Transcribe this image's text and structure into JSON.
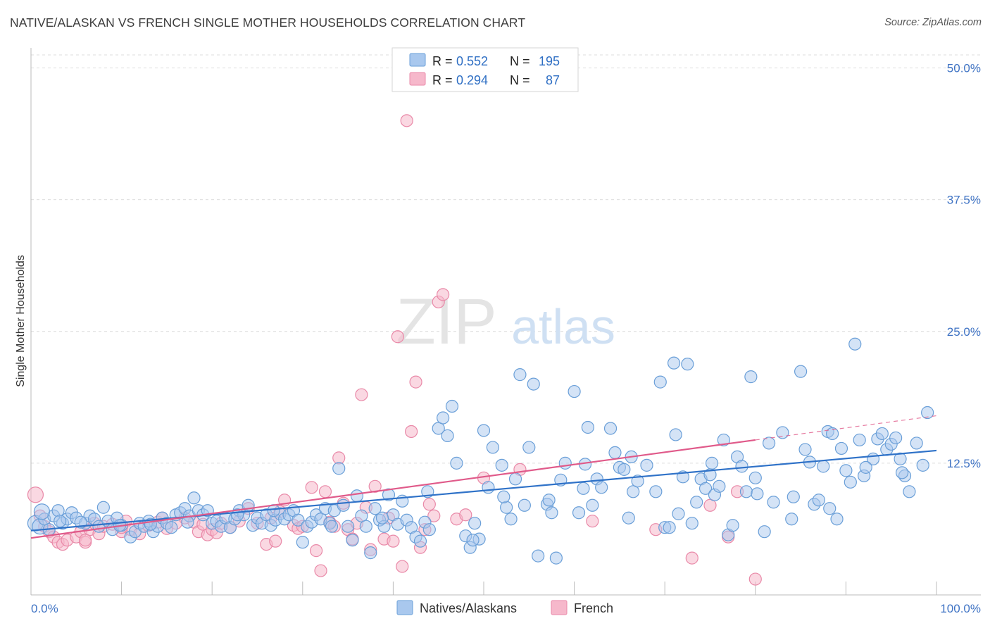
{
  "header": {
    "title": "NATIVE/ALASKAN VS FRENCH SINGLE MOTHER HOUSEHOLDS CORRELATION CHART",
    "source": "Source: ZipAtlas.com"
  },
  "watermark": {
    "zip": "ZIP",
    "atlas": "atlas"
  },
  "colors": {
    "blue_fill": "#a9c8ee",
    "blue_stroke": "#6a9fd8",
    "blue_line": "#2f72c8",
    "pink_fill": "#f6b8cb",
    "pink_stroke": "#e989a8",
    "pink_line": "#e05a8a",
    "axis_text": "#3f73c4",
    "grid": "#dcdcdc"
  },
  "legend_top": [
    {
      "swatch": "blue",
      "r_label": "R = ",
      "r_value": "0.552",
      "n_label": "N = ",
      "n_value": "195"
    },
    {
      "swatch": "pink",
      "r_label": "R = ",
      "r_value": "0.294",
      "n_label": "N = ",
      "n_value": "87"
    }
  ],
  "legend_bottom": [
    {
      "swatch": "blue",
      "label": "Natives/Alaskans"
    },
    {
      "swatch": "pink",
      "label": "French"
    }
  ],
  "chart_data": {
    "type": "scatter",
    "xlabel": "",
    "ylabel": "Single Mother Households",
    "xlim": [
      0,
      100
    ],
    "ylim": [
      0,
      50
    ],
    "x_tick_labels": {
      "min": "0.0%",
      "max": "100.0%"
    },
    "y_tick_labels": [
      "12.5%",
      "25.0%",
      "37.5%",
      "50.0%"
    ],
    "y_ticks": [
      12.5,
      25.0,
      37.5,
      50.0
    ],
    "grid": "horizontal dashed",
    "legend_position": "top-center",
    "series": [
      {
        "name": "Natives/Alaskans",
        "color": "#a9c8ee",
        "trend": {
          "x0": 0,
          "y0": 6.1,
          "x1": 100,
          "y1": 13.7
        },
        "points": [
          [
            0.5,
            6.8
          ],
          [
            1,
            6.5
          ],
          [
            1.5,
            7.2
          ],
          [
            2,
            6.2
          ],
          [
            2.5,
            7.5
          ],
          [
            3,
            8
          ],
          [
            3.5,
            6.8
          ],
          [
            4,
            7.2
          ],
          [
            4.5,
            7.8
          ],
          [
            5,
            7.3
          ],
          [
            6,
            6.8
          ],
          [
            6.5,
            7.5
          ],
          [
            7,
            7.2
          ],
          [
            7.5,
            6.5
          ],
          [
            8,
            8.3
          ],
          [
            8.5,
            7
          ],
          [
            9,
            6.2
          ],
          [
            9.5,
            7.3
          ],
          [
            10,
            6.6
          ],
          [
            11,
            5.5
          ],
          [
            11.5,
            6
          ],
          [
            12,
            6.8
          ],
          [
            12.5,
            6.5
          ],
          [
            13,
            7
          ],
          [
            13.5,
            6
          ],
          [
            14,
            6.5
          ],
          [
            14.5,
            7.3
          ],
          [
            15,
            6.8
          ],
          [
            15.5,
            6.4
          ],
          [
            16,
            7.6
          ],
          [
            16.5,
            7.8
          ],
          [
            17,
            8.2
          ],
          [
            17.5,
            7.5
          ],
          [
            18,
            9.2
          ],
          [
            18.5,
            8
          ],
          [
            19,
            7.6
          ],
          [
            19.5,
            8
          ],
          [
            20,
            6.8
          ],
          [
            20.5,
            7
          ],
          [
            21,
            6.5
          ],
          [
            21.5,
            7.3
          ],
          [
            22,
            6.4
          ],
          [
            22.5,
            7.2
          ],
          [
            23,
            8
          ],
          [
            23.5,
            7.6
          ],
          [
            24,
            8.5
          ],
          [
            24.5,
            6.6
          ],
          [
            25,
            7.3
          ],
          [
            25.5,
            6.8
          ],
          [
            26,
            7.6
          ],
          [
            26.5,
            6.6
          ],
          [
            27,
            7.1
          ],
          [
            27.5,
            7.7
          ],
          [
            28,
            7.2
          ],
          [
            28.5,
            7.6
          ],
          [
            29,
            8
          ],
          [
            29.5,
            7.1
          ],
          [
            30,
            5
          ],
          [
            30.5,
            6.5
          ],
          [
            31,
            6.9
          ],
          [
            31.5,
            7.6
          ],
          [
            32,
            7.2
          ],
          [
            32.5,
            8.2
          ],
          [
            33,
            6.8
          ],
          [
            33.5,
            8
          ],
          [
            34,
            12
          ],
          [
            34.5,
            8.5
          ],
          [
            35,
            6.5
          ],
          [
            35.5,
            5.2
          ],
          [
            36,
            9.4
          ],
          [
            36.5,
            7.5
          ],
          [
            37,
            6.5
          ],
          [
            37.5,
            4
          ],
          [
            38,
            8.2
          ],
          [
            38.5,
            7.1
          ],
          [
            39,
            6.5
          ],
          [
            39.5,
            9.5
          ],
          [
            40,
            7.6
          ],
          [
            40.5,
            6.7
          ],
          [
            41,
            8.9
          ],
          [
            41.5,
            7.1
          ],
          [
            42,
            6.4
          ],
          [
            42.5,
            5.5
          ],
          [
            43,
            5.1
          ],
          [
            43.5,
            6.9
          ],
          [
            44,
            6.2
          ],
          [
            45,
            15.8
          ],
          [
            45.5,
            16.8
          ],
          [
            46,
            15.1
          ],
          [
            46.5,
            17.9
          ],
          [
            47,
            12.5
          ],
          [
            48,
            5.6
          ],
          [
            48.5,
            4.5
          ],
          [
            49,
            6.8
          ],
          [
            49.5,
            5.3
          ],
          [
            50,
            15.6
          ],
          [
            50.5,
            10.2
          ],
          [
            51,
            14
          ],
          [
            52,
            12.3
          ],
          [
            52.5,
            8.3
          ],
          [
            53,
            7.2
          ],
          [
            53.5,
            11
          ],
          [
            54,
            20.9
          ],
          [
            54.5,
            8.5
          ],
          [
            55,
            14
          ],
          [
            55.5,
            20
          ],
          [
            56,
            3.7
          ],
          [
            57,
            8.6
          ],
          [
            57.5,
            7.8
          ],
          [
            58,
            3.5
          ],
          [
            58.5,
            10.9
          ],
          [
            59,
            12.5
          ],
          [
            60,
            19.3
          ],
          [
            60.5,
            7.8
          ],
          [
            61,
            10.1
          ],
          [
            61.5,
            15.9
          ],
          [
            62,
            8.5
          ],
          [
            62.5,
            11
          ],
          [
            63,
            10.2
          ],
          [
            64,
            15.8
          ],
          [
            64.5,
            13.5
          ],
          [
            65,
            12.1
          ],
          [
            65.5,
            11.9
          ],
          [
            66,
            7.3
          ],
          [
            66.5,
            9.8
          ],
          [
            67,
            10.8
          ],
          [
            68,
            12.3
          ],
          [
            69,
            9.8
          ],
          [
            69.5,
            20.2
          ],
          [
            70,
            6.4
          ],
          [
            70.5,
            6.4
          ],
          [
            71,
            22
          ],
          [
            71.5,
            7.7
          ],
          [
            72,
            11.2
          ],
          [
            72.5,
            21.9
          ],
          [
            73,
            6.8
          ],
          [
            73.5,
            8.8
          ],
          [
            74,
            11
          ],
          [
            74.5,
            10.1
          ],
          [
            75,
            11.4
          ],
          [
            75.5,
            9.5
          ],
          [
            76,
            10.3
          ],
          [
            76.5,
            14.7
          ],
          [
            77,
            5.7
          ],
          [
            77.5,
            6.6
          ],
          [
            78,
            13.1
          ],
          [
            78.5,
            12.2
          ],
          [
            79,
            9.8
          ],
          [
            79.5,
            20.7
          ],
          [
            80,
            11.1
          ],
          [
            81,
            6
          ],
          [
            81.5,
            14.4
          ],
          [
            82,
            8.8
          ],
          [
            83,
            15.4
          ],
          [
            84,
            7.2
          ],
          [
            85,
            21.2
          ],
          [
            85.5,
            13.8
          ],
          [
            86,
            12.6
          ],
          [
            86.5,
            8.6
          ],
          [
            87,
            9
          ],
          [
            87.5,
            12.2
          ],
          [
            88,
            15.5
          ],
          [
            88.5,
            15.3
          ],
          [
            89,
            7.2
          ],
          [
            89.5,
            13.9
          ],
          [
            90,
            11.8
          ],
          [
            90.5,
            10.7
          ],
          [
            91,
            23.8
          ],
          [
            91.5,
            14.7
          ],
          [
            92,
            11.3
          ],
          [
            93,
            12.9
          ],
          [
            93.5,
            14.8
          ],
          [
            94,
            15.3
          ],
          [
            94.5,
            13.8
          ],
          [
            95,
            14.3
          ],
          [
            95.5,
            14.9
          ],
          [
            96,
            12.9
          ],
          [
            96.5,
            11.3
          ],
          [
            97,
            9.8
          ],
          [
            99,
            17.3
          ],
          [
            1.2,
            7.9
          ],
          [
            3.2,
            7
          ],
          [
            5.5,
            6.9
          ],
          [
            9.8,
            6.6
          ],
          [
            13.2,
            6.7
          ],
          [
            17.3,
            6.9
          ],
          [
            22.8,
            7.6
          ],
          [
            26.8,
            8
          ],
          [
            33.2,
            6.5
          ],
          [
            38.8,
            7.3
          ],
          [
            43.8,
            9.8
          ],
          [
            48.8,
            5.2
          ],
          [
            52.2,
            9.3
          ],
          [
            57.2,
            9
          ],
          [
            61.2,
            12.4
          ],
          [
            66.3,
            13.1
          ],
          [
            71.2,
            15.2
          ],
          [
            75.2,
            12.5
          ],
          [
            80.2,
            9.6
          ],
          [
            84.2,
            9.3
          ],
          [
            88.2,
            8.2
          ],
          [
            92.2,
            12.1
          ],
          [
            96.2,
            11.6
          ],
          [
            98.5,
            12.3
          ],
          [
            97.8,
            14.4
          ]
        ]
      },
      {
        "name": "French",
        "color": "#f6b8cb",
        "trend": {
          "x0": 0,
          "y0": 5.4,
          "x1": 80,
          "y1": 14.7
        },
        "trend_dashed_to": {
          "x": 100,
          "y": 17.0
        },
        "points": [
          [
            0.5,
            9.5
          ],
          [
            1,
            7.5
          ],
          [
            1.5,
            6.5
          ],
          [
            2,
            6
          ],
          [
            2.5,
            5.5
          ],
          [
            3,
            5
          ],
          [
            3.5,
            4.8
          ],
          [
            4,
            5.2
          ],
          [
            5,
            5.5
          ],
          [
            5.5,
            6
          ],
          [
            6,
            5
          ],
          [
            6.5,
            6.2
          ],
          [
            7,
            6.8
          ],
          [
            7.5,
            5.8
          ],
          [
            8,
            6.5
          ],
          [
            9,
            6.7
          ],
          [
            10,
            6
          ],
          [
            10.5,
            7
          ],
          [
            11,
            6.2
          ],
          [
            12,
            5.8
          ],
          [
            13,
            6.6
          ],
          [
            14,
            6.9
          ],
          [
            14.5,
            7.3
          ],
          [
            15,
            6.3
          ],
          [
            16,
            6.8
          ],
          [
            17,
            7.3
          ],
          [
            18,
            6.9
          ],
          [
            18.5,
            6
          ],
          [
            19,
            6.7
          ],
          [
            19.5,
            5.7
          ],
          [
            20,
            6.2
          ],
          [
            20.5,
            5.9
          ],
          [
            21,
            6.8
          ],
          [
            22,
            6.4
          ],
          [
            23,
            7
          ],
          [
            24,
            8.2
          ],
          [
            25,
            6.8
          ],
          [
            26,
            4.8
          ],
          [
            26.5,
            7.3
          ],
          [
            27,
            5.1
          ],
          [
            27.5,
            7.9
          ],
          [
            28,
            9
          ],
          [
            29,
            6.6
          ],
          [
            29.5,
            6.3
          ],
          [
            30,
            6.5
          ],
          [
            31,
            10.2
          ],
          [
            31.5,
            4.2
          ],
          [
            32,
            2.3
          ],
          [
            32.5,
            9.8
          ],
          [
            33,
            6.9
          ],
          [
            33.5,
            6.5
          ],
          [
            34,
            13
          ],
          [
            34.5,
            8.7
          ],
          [
            35,
            6.2
          ],
          [
            35.5,
            5.3
          ],
          [
            36,
            6.8
          ],
          [
            36.5,
            19
          ],
          [
            37,
            8.3
          ],
          [
            37.5,
            4.3
          ],
          [
            38,
            10.3
          ],
          [
            39,
            5.3
          ],
          [
            39.5,
            7.3
          ],
          [
            40,
            5.1
          ],
          [
            40.5,
            24.5
          ],
          [
            41,
            2.7
          ],
          [
            41.5,
            45
          ],
          [
            42,
            15.5
          ],
          [
            42.5,
            20.2
          ],
          [
            43,
            4.5
          ],
          [
            43.5,
            6.2
          ],
          [
            44,
            8.6
          ],
          [
            44.5,
            7.5
          ],
          [
            45,
            27.8
          ],
          [
            45.5,
            28.5
          ],
          [
            47,
            7.2
          ],
          [
            48,
            7.6
          ],
          [
            50,
            11.1
          ],
          [
            54,
            11.9
          ],
          [
            62,
            7
          ],
          [
            69,
            6.2
          ],
          [
            73,
            3.5
          ],
          [
            75,
            8.5
          ],
          [
            77,
            5.5
          ],
          [
            78,
            9.8
          ],
          [
            80,
            1.5
          ],
          [
            10,
            6.4
          ],
          [
            6,
            5.2
          ]
        ]
      }
    ]
  }
}
